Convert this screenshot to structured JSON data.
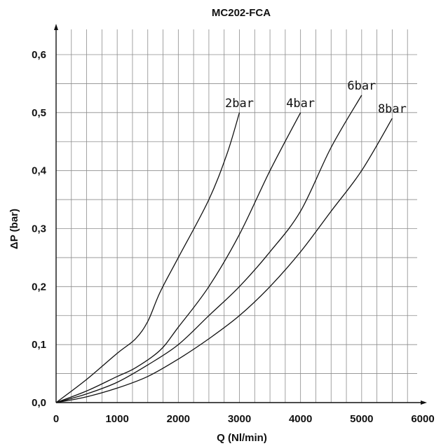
{
  "chart_data": {
    "type": "line",
    "title": "MC202-FCA",
    "xlabel": "Q (Nl/min)",
    "ylabel": "ΔP  (bar)",
    "xlim": [
      0,
      6000
    ],
    "ylim": [
      0,
      0.65
    ],
    "x_ticks": [
      0,
      1000,
      2000,
      3000,
      4000,
      5000,
      6000
    ],
    "x_tick_labels": [
      "0",
      "1000",
      "2000",
      "3000",
      "4000",
      "5000",
      "6000"
    ],
    "y_ticks": [
      0,
      0.1,
      0.2,
      0.3,
      0.4,
      0.5,
      0.6
    ],
    "y_tick_labels": [
      "0,0",
      "0,1",
      "0,2",
      "0,3",
      "0,4",
      "0,5",
      "0,6"
    ],
    "grid": true,
    "series": [
      {
        "name": "2bar",
        "points": [
          [
            0,
            0
          ],
          [
            500,
            0.04
          ],
          [
            1000,
            0.085
          ],
          [
            1300,
            0.11
          ],
          [
            1500,
            0.14
          ],
          [
            1700,
            0.19
          ],
          [
            2000,
            0.25
          ],
          [
            2500,
            0.35
          ],
          [
            2800,
            0.43
          ],
          [
            3000,
            0.5
          ]
        ]
      },
      {
        "name": "4bar",
        "points": [
          [
            0,
            0
          ],
          [
            500,
            0.02
          ],
          [
            1000,
            0.045
          ],
          [
            1300,
            0.06
          ],
          [
            1700,
            0.09
          ],
          [
            2000,
            0.13
          ],
          [
            2500,
            0.2
          ],
          [
            3000,
            0.29
          ],
          [
            3500,
            0.4
          ],
          [
            4000,
            0.5
          ]
        ]
      },
      {
        "name": "6bar",
        "points": [
          [
            0,
            0
          ],
          [
            500,
            0.015
          ],
          [
            1000,
            0.035
          ],
          [
            1500,
            0.065
          ],
          [
            2000,
            0.1
          ],
          [
            2500,
            0.15
          ],
          [
            3000,
            0.2
          ],
          [
            3500,
            0.26
          ],
          [
            4000,
            0.33
          ],
          [
            4500,
            0.44
          ],
          [
            5000,
            0.53
          ]
        ]
      },
      {
        "name": "8bar",
        "points": [
          [
            0,
            0
          ],
          [
            500,
            0.01
          ],
          [
            1000,
            0.025
          ],
          [
            1500,
            0.045
          ],
          [
            2000,
            0.075
          ],
          [
            2500,
            0.11
          ],
          [
            3000,
            0.15
          ],
          [
            3500,
            0.2
          ],
          [
            4000,
            0.26
          ],
          [
            4500,
            0.33
          ],
          [
            5000,
            0.4
          ],
          [
            5500,
            0.49
          ]
        ]
      }
    ]
  }
}
